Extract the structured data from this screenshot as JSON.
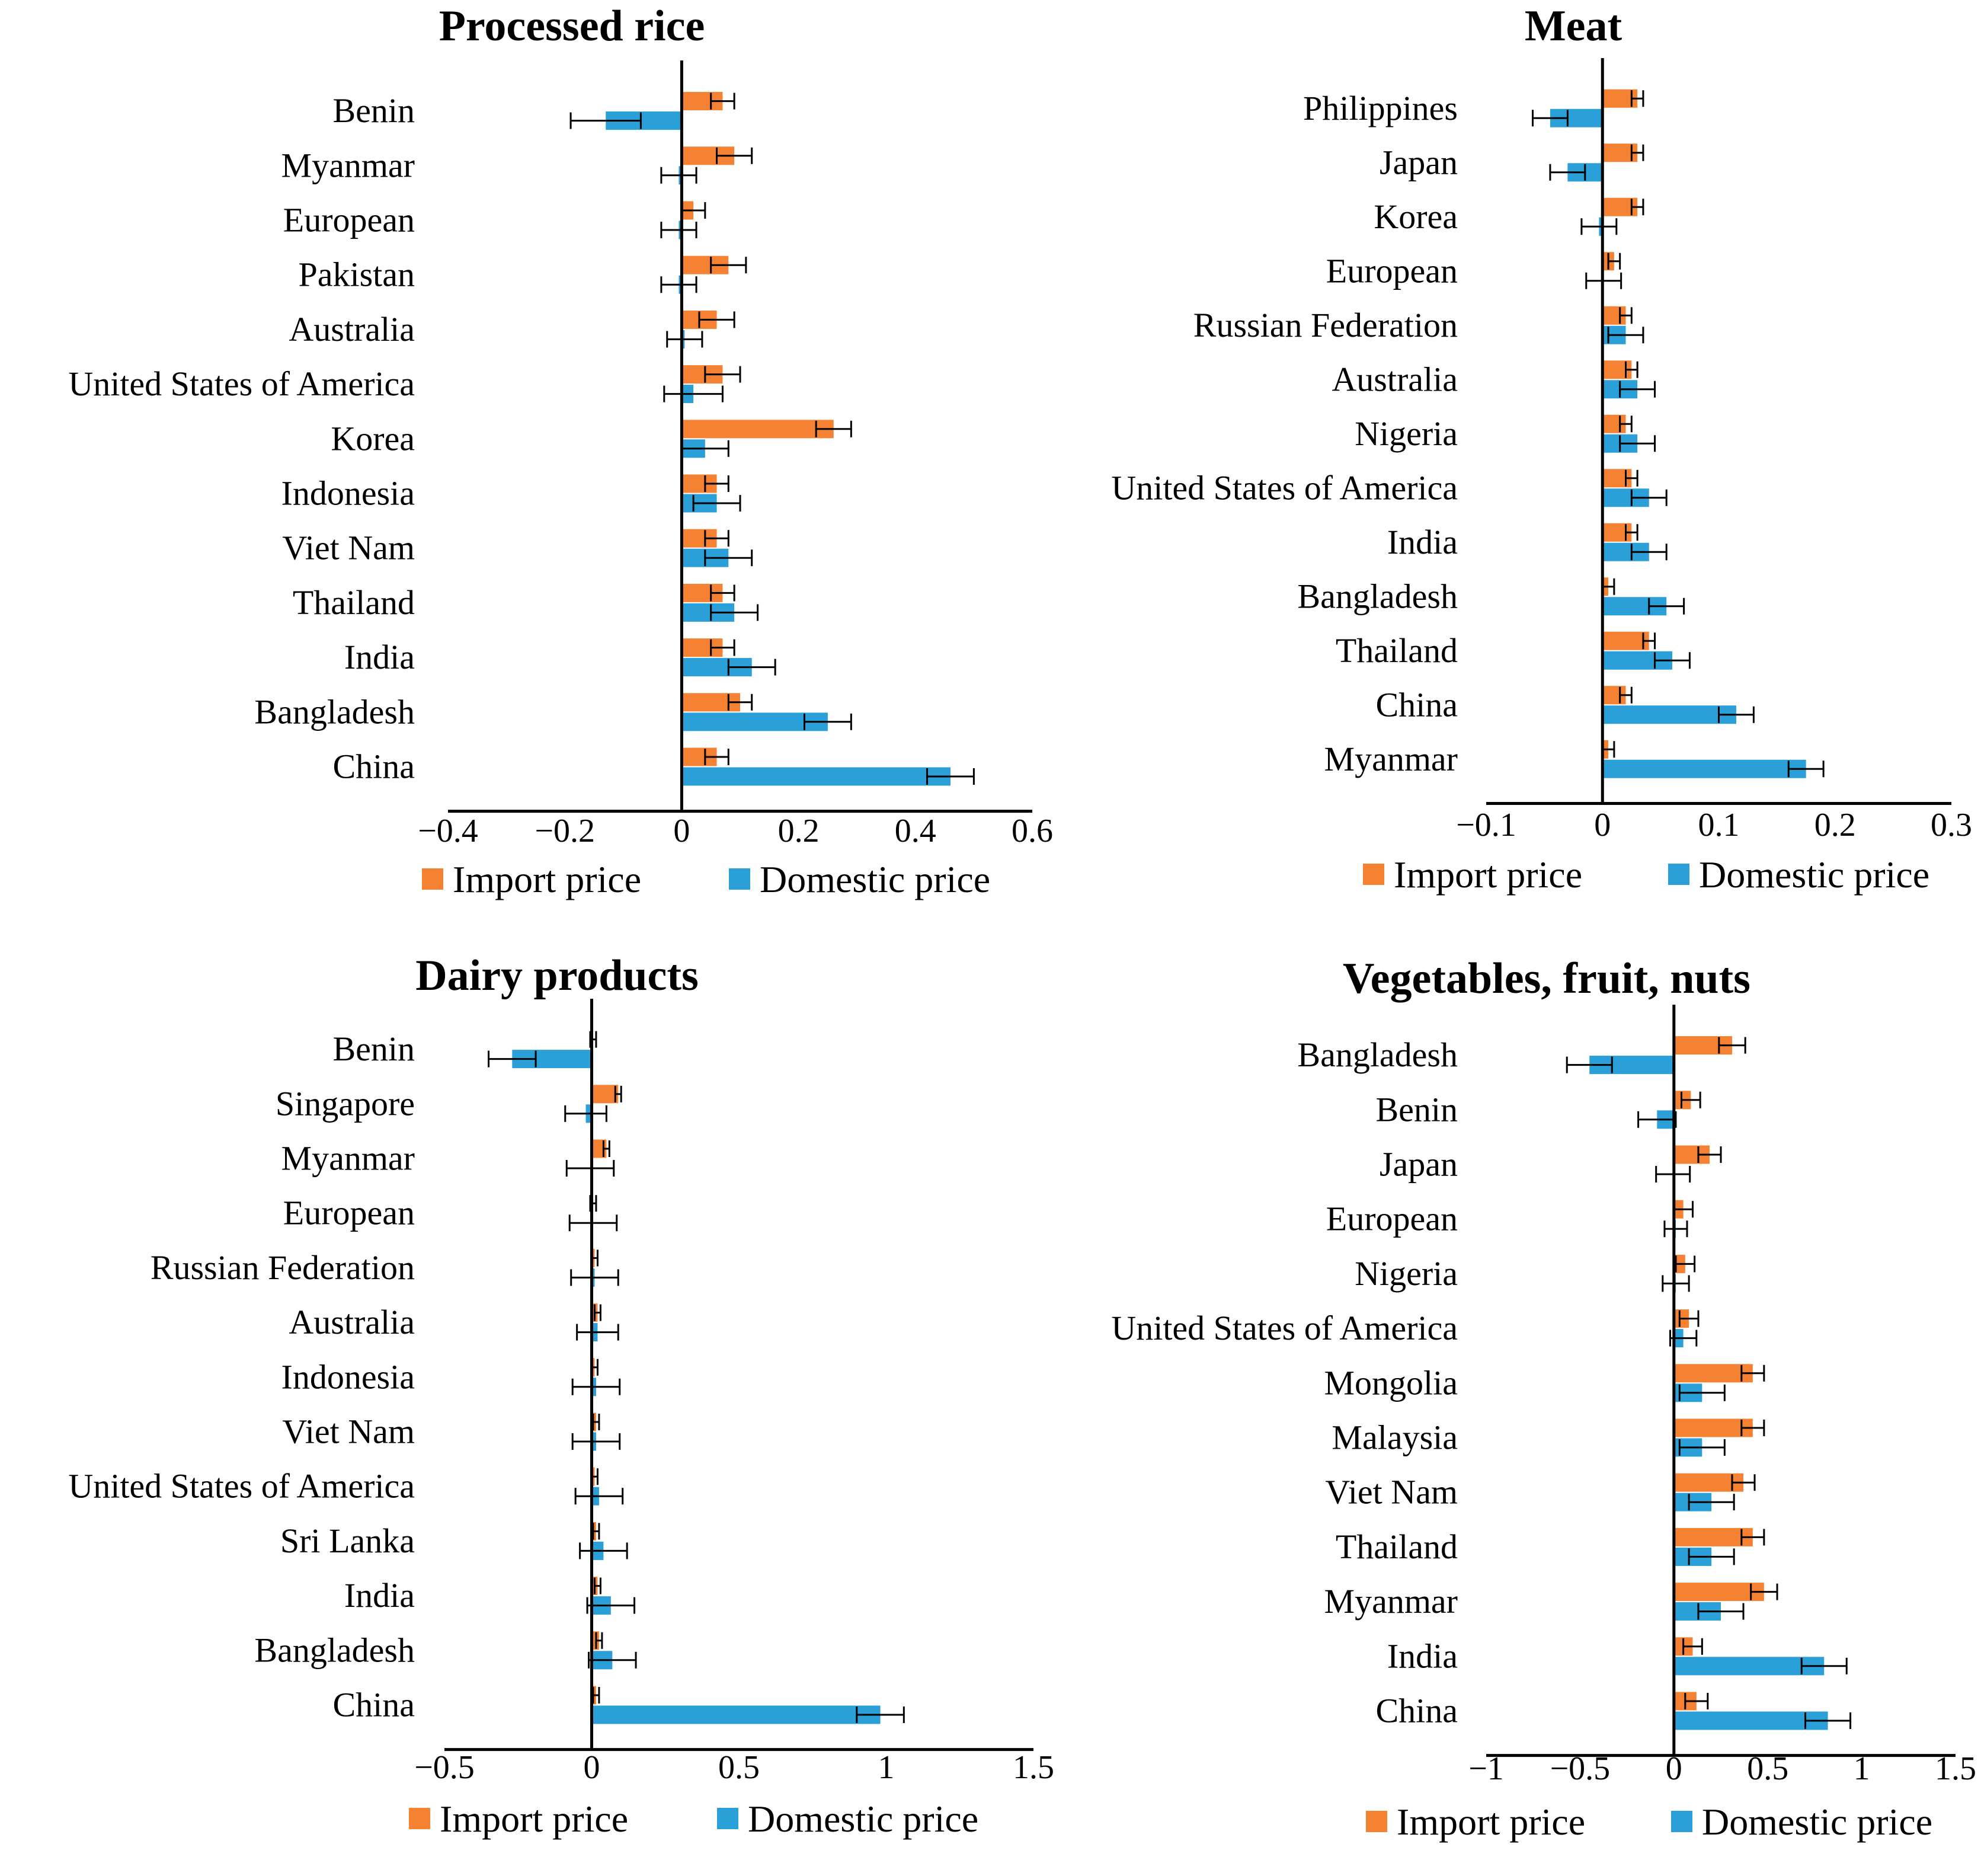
{
  "colors": {
    "import": "#f58232",
    "domestic": "#2a9fd8",
    "axis": "#000000",
    "error_bar": "#000000"
  },
  "legend": {
    "import_label": "Import price",
    "domestic_label": "Domestic price"
  },
  "chart_data": [
    {
      "type": "bar",
      "orientation": "horizontal",
      "title": "Processed rice",
      "xlim": [
        -0.4,
        0.6
      ],
      "ticks": [
        -0.4,
        -0.2,
        0,
        0.2,
        0.4,
        0.6
      ],
      "tick_labels": [
        "−0.4",
        "−0.2",
        "0",
        "0.2",
        "0.4",
        "0.6"
      ],
      "categories": [
        "Benin",
        "Myanmar",
        "European",
        "Pakistan",
        "Australia",
        "United States of America",
        "Korea",
        "Indonesia",
        "Viet Nam",
        "Thailand",
        "India",
        "Bangladesh",
        "China"
      ],
      "series": [
        {
          "name": "Import price",
          "values": [
            0.07,
            0.09,
            0.02,
            0.08,
            0.06,
            0.07,
            0.26,
            0.06,
            0.06,
            0.07,
            0.07,
            0.1,
            0.06
          ],
          "errors": [
            0.02,
            0.03,
            0.02,
            0.03,
            0.03,
            0.03,
            0.03,
            0.02,
            0.02,
            0.02,
            0.02,
            0.02,
            0.02
          ]
        },
        {
          "name": "Domestic price",
          "values": [
            -0.13,
            -0.005,
            -0.005,
            -0.005,
            0.005,
            0.02,
            0.04,
            0.06,
            0.08,
            0.09,
            0.12,
            0.25,
            0.46
          ],
          "errors": [
            0.06,
            0.03,
            0.03,
            0.03,
            0.03,
            0.05,
            0.04,
            0.04,
            0.04,
            0.04,
            0.04,
            0.04,
            0.04
          ]
        }
      ]
    },
    {
      "type": "bar",
      "orientation": "horizontal",
      "title": "Meat",
      "xlim": [
        -0.1,
        0.3
      ],
      "ticks": [
        -0.1,
        0,
        0.1,
        0.2,
        0.3
      ],
      "tick_labels": [
        "−0.1",
        "0",
        "0.1",
        "0.2",
        "0.3"
      ],
      "categories": [
        "Philippines",
        "Japan",
        "Korea",
        "European",
        "Russian Federation",
        "Australia",
        "Nigeria",
        "United States of America",
        "India",
        "Bangladesh",
        "Thailand",
        "China",
        "Myanmar"
      ],
      "series": [
        {
          "name": "Import price",
          "values": [
            0.03,
            0.03,
            0.03,
            0.01,
            0.02,
            0.025,
            0.02,
            0.025,
            0.025,
            0.005,
            0.04,
            0.02,
            0.005
          ],
          "errors": [
            0.005,
            0.005,
            0.005,
            0.005,
            0.005,
            0.005,
            0.005,
            0.005,
            0.005,
            0.005,
            0.005,
            0.005,
            0.005
          ]
        },
        {
          "name": "Domestic price",
          "values": [
            -0.045,
            -0.03,
            -0.003,
            0.001,
            0.02,
            0.03,
            0.03,
            0.04,
            0.04,
            0.055,
            0.06,
            0.115,
            0.175
          ],
          "errors": [
            0.015,
            0.015,
            0.015,
            0.015,
            0.015,
            0.015,
            0.015,
            0.015,
            0.015,
            0.015,
            0.015,
            0.015,
            0.015
          ]
        }
      ]
    },
    {
      "type": "bar",
      "orientation": "horizontal",
      "title": "Dairy products",
      "xlim": [
        -0.5,
        1.5
      ],
      "ticks": [
        -0.5,
        0,
        0.5,
        1,
        1.5
      ],
      "tick_labels": [
        "−0.5",
        "0",
        "0.5",
        "1",
        "1.5"
      ],
      "categories": [
        "Benin",
        "Singapore",
        "Myanmar",
        "European",
        "Russian Federation",
        "Australia",
        "Indonesia",
        "Viet Nam",
        "United States of America",
        "Sri Lanka",
        "India",
        "Bangladesh",
        "China"
      ],
      "series": [
        {
          "name": "Import price",
          "values": [
            0.005,
            0.09,
            0.05,
            0.005,
            0.01,
            0.02,
            0.01,
            0.015,
            0.01,
            0.015,
            0.02,
            0.025,
            0.015
          ],
          "errors": [
            0.01,
            0.01,
            0.01,
            0.01,
            0.01,
            0.01,
            0.01,
            0.01,
            0.01,
            0.01,
            0.01,
            0.01,
            0.01
          ]
        },
        {
          "name": "Domestic price",
          "values": [
            -0.27,
            -0.02,
            -0.005,
            0.005,
            0.01,
            0.02,
            0.015,
            0.015,
            0.025,
            0.04,
            0.065,
            0.07,
            0.98
          ],
          "errors": [
            0.08,
            0.07,
            0.08,
            0.08,
            0.08,
            0.07,
            0.08,
            0.08,
            0.08,
            0.08,
            0.08,
            0.08,
            0.08
          ]
        }
      ]
    },
    {
      "type": "bar",
      "orientation": "horizontal",
      "title": "Vegetables, fruit, nuts",
      "xlim": [
        -1,
        1.5
      ],
      "ticks": [
        -1,
        -0.5,
        0,
        0.5,
        1,
        1.5
      ],
      "tick_labels": [
        "−1",
        "−0.5",
        "0",
        "0.5",
        "1",
        "1.5"
      ],
      "categories": [
        "Bangladesh",
        "Benin",
        "Japan",
        "European",
        "Nigeria",
        "United States of America",
        "Mongolia",
        "Malaysia",
        "Viet Nam",
        "Thailand",
        "Myanmar",
        "India",
        "China"
      ],
      "series": [
        {
          "name": "Import price",
          "values": [
            0.31,
            0.09,
            0.19,
            0.05,
            0.06,
            0.08,
            0.42,
            0.42,
            0.37,
            0.42,
            0.48,
            0.1,
            0.12
          ],
          "errors": [
            0.07,
            0.05,
            0.06,
            0.05,
            0.05,
            0.05,
            0.06,
            0.06,
            0.06,
            0.06,
            0.07,
            0.05,
            0.06
          ]
        },
        {
          "name": "Domestic price",
          "values": [
            -0.45,
            -0.09,
            -0.005,
            0.01,
            0.01,
            0.05,
            0.15,
            0.15,
            0.2,
            0.2,
            0.25,
            0.8,
            0.82
          ],
          "errors": [
            0.12,
            0.1,
            0.09,
            0.06,
            0.07,
            0.07,
            0.12,
            0.12,
            0.12,
            0.12,
            0.12,
            0.12,
            0.12
          ]
        }
      ]
    }
  ]
}
